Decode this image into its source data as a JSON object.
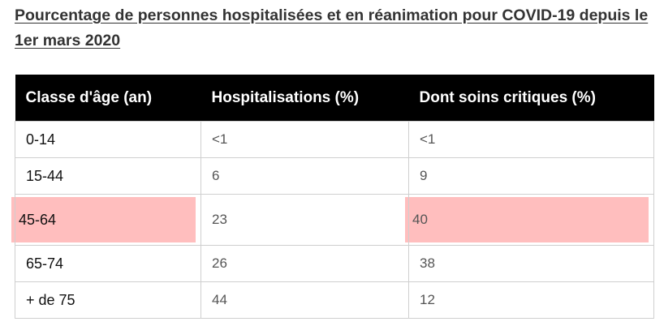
{
  "title": "Pourcentage de personnes hospitalisées et en réanimation pour COVID-19 depuis le 1er mars 2020",
  "table": {
    "headers": [
      "Classe d'âge (an)",
      "Hospitalisations (%)",
      "Dont soins critiques (%)"
    ],
    "rows": [
      {
        "age": "0-14",
        "hosp": "<1",
        "crit": "<1",
        "highlighted": false
      },
      {
        "age": "15-44",
        "hosp": "6",
        "crit": "9",
        "highlighted": false
      },
      {
        "age": "45-64",
        "hosp": "23",
        "crit": "40",
        "highlighted": true
      },
      {
        "age": "65-74",
        "hosp": "26",
        "crit": "38",
        "highlighted": false
      },
      {
        "age": "+ de 75",
        "hosp": "44",
        "crit": "12",
        "highlighted": false
      }
    ]
  },
  "colors": {
    "header_bg": "#000000",
    "highlight": "#ffbebe",
    "border": "#cfcfcf"
  }
}
